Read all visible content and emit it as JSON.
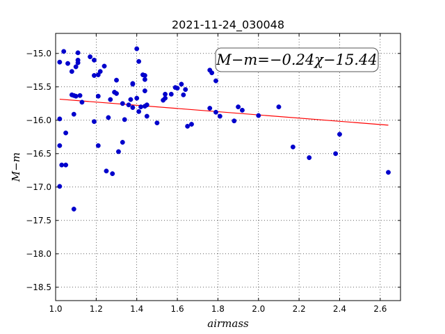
{
  "chart_data": {
    "type": "scatter",
    "title": "2021-11-24_030048",
    "xlabel": "airmass",
    "ylabel": "M−m",
    "xlim": [
      1.0,
      2.7
    ],
    "ylim": [
      -18.7,
      -14.7
    ],
    "y_inverted": true,
    "grid": true,
    "grid_style": "dotted",
    "xticks": [
      1.0,
      1.2,
      1.4,
      1.6,
      1.8,
      2.0,
      2.2,
      2.4,
      2.6
    ],
    "xtick_labels": [
      "1.0",
      "1.2",
      "1.4",
      "1.6",
      "1.8",
      "2.0",
      "2.2",
      "2.4",
      "2.6"
    ],
    "yticks": [
      -15.0,
      -15.5,
      -16.0,
      -16.5,
      -17.0,
      -17.5,
      -18.0,
      -18.5
    ],
    "ytick_labels": [
      "−15.0",
      "−15.5",
      "−16.0",
      "−16.5",
      "−17.0",
      "−17.5",
      "−18.0",
      "−18.5"
    ],
    "annotation": "M−m=−0.24χ−15.44",
    "annotation_placement": "top-right",
    "fit": {
      "slope": -0.24,
      "intercept": -15.44,
      "x_range": [
        1.02,
        2.64
      ],
      "color": "#ff0000"
    },
    "marker_color": "#0000cc",
    "points": [
      {
        "x": 1.02,
        "y": -15.13
      },
      {
        "x": 1.04,
        "y": -14.97
      },
      {
        "x": 1.06,
        "y": -15.15
      },
      {
        "x": 1.08,
        "y": -15.27
      },
      {
        "x": 1.1,
        "y": -15.2
      },
      {
        "x": 1.11,
        "y": -15.14
      },
      {
        "x": 1.11,
        "y": -15.1
      },
      {
        "x": 1.11,
        "y": -14.99
      },
      {
        "x": 1.17,
        "y": -15.05
      },
      {
        "x": 1.19,
        "y": -15.1
      },
      {
        "x": 1.22,
        "y": -15.27
      },
      {
        "x": 1.24,
        "y": -15.19
      },
      {
        "x": 1.19,
        "y": -15.33
      },
      {
        "x": 1.21,
        "y": -15.32
      },
      {
        "x": 1.3,
        "y": -15.4
      },
      {
        "x": 1.4,
        "y": -14.93
      },
      {
        "x": 1.41,
        "y": -15.12
      },
      {
        "x": 1.43,
        "y": -15.32
      },
      {
        "x": 1.44,
        "y": -15.33
      },
      {
        "x": 1.44,
        "y": -15.39
      },
      {
        "x": 1.44,
        "y": -15.56
      },
      {
        "x": 1.38,
        "y": -15.45
      },
      {
        "x": 1.38,
        "y": -15.46
      },
      {
        "x": 1.08,
        "y": -15.62
      },
      {
        "x": 1.09,
        "y": -15.63
      },
      {
        "x": 1.1,
        "y": -15.64
      },
      {
        "x": 1.12,
        "y": -15.63
      },
      {
        "x": 1.13,
        "y": -15.73
      },
      {
        "x": 1.21,
        "y": -15.64
      },
      {
        "x": 1.27,
        "y": -15.69
      },
      {
        "x": 1.29,
        "y": -15.58
      },
      {
        "x": 1.3,
        "y": -15.6
      },
      {
        "x": 1.33,
        "y": -15.75
      },
      {
        "x": 1.36,
        "y": -15.77
      },
      {
        "x": 1.37,
        "y": -15.69
      },
      {
        "x": 1.38,
        "y": -15.81
      },
      {
        "x": 1.4,
        "y": -15.67
      },
      {
        "x": 1.41,
        "y": -15.87
      },
      {
        "x": 1.42,
        "y": -15.8
      },
      {
        "x": 1.44,
        "y": -15.79
      },
      {
        "x": 1.45,
        "y": -15.77
      },
      {
        "x": 1.45,
        "y": -15.94
      },
      {
        "x": 1.5,
        "y": -16.04
      },
      {
        "x": 1.53,
        "y": -15.7
      },
      {
        "x": 1.54,
        "y": -15.67
      },
      {
        "x": 1.54,
        "y": -15.61
      },
      {
        "x": 1.57,
        "y": -15.61
      },
      {
        "x": 1.59,
        "y": -15.51
      },
      {
        "x": 1.6,
        "y": -15.52
      },
      {
        "x": 1.62,
        "y": -15.46
      },
      {
        "x": 1.63,
        "y": -15.62
      },
      {
        "x": 1.64,
        "y": -15.54
      },
      {
        "x": 1.65,
        "y": -16.09
      },
      {
        "x": 1.67,
        "y": -16.06
      },
      {
        "x": 1.76,
        "y": -15.25
      },
      {
        "x": 1.77,
        "y": -15.29
      },
      {
        "x": 1.79,
        "y": -15.41
      },
      {
        "x": 1.76,
        "y": -15.82
      },
      {
        "x": 1.79,
        "y": -15.88
      },
      {
        "x": 1.81,
        "y": -15.94
      },
      {
        "x": 1.88,
        "y": -16.01
      },
      {
        "x": 1.9,
        "y": -15.8
      },
      {
        "x": 1.92,
        "y": -15.85
      },
      {
        "x": 2.0,
        "y": -15.93
      },
      {
        "x": 2.1,
        "y": -15.8
      },
      {
        "x": 1.02,
        "y": -15.98
      },
      {
        "x": 1.05,
        "y": -16.19
      },
      {
        "x": 1.09,
        "y": -15.91
      },
      {
        "x": 1.19,
        "y": -16.02
      },
      {
        "x": 1.26,
        "y": -15.96
      },
      {
        "x": 1.34,
        "y": -15.99
      },
      {
        "x": 1.02,
        "y": -16.38
      },
      {
        "x": 1.21,
        "y": -16.38
      },
      {
        "x": 1.33,
        "y": -16.33
      },
      {
        "x": 1.31,
        "y": -16.47
      },
      {
        "x": 1.03,
        "y": -16.67
      },
      {
        "x": 1.05,
        "y": -16.67
      },
      {
        "x": 1.25,
        "y": -16.76
      },
      {
        "x": 1.28,
        "y": -16.8
      },
      {
        "x": 1.02,
        "y": -16.99
      },
      {
        "x": 1.09,
        "y": -17.33
      },
      {
        "x": 2.17,
        "y": -16.4
      },
      {
        "x": 2.25,
        "y": -16.56
      },
      {
        "x": 2.38,
        "y": -16.5
      },
      {
        "x": 2.4,
        "y": -16.21
      },
      {
        "x": 2.64,
        "y": -16.78
      }
    ]
  }
}
